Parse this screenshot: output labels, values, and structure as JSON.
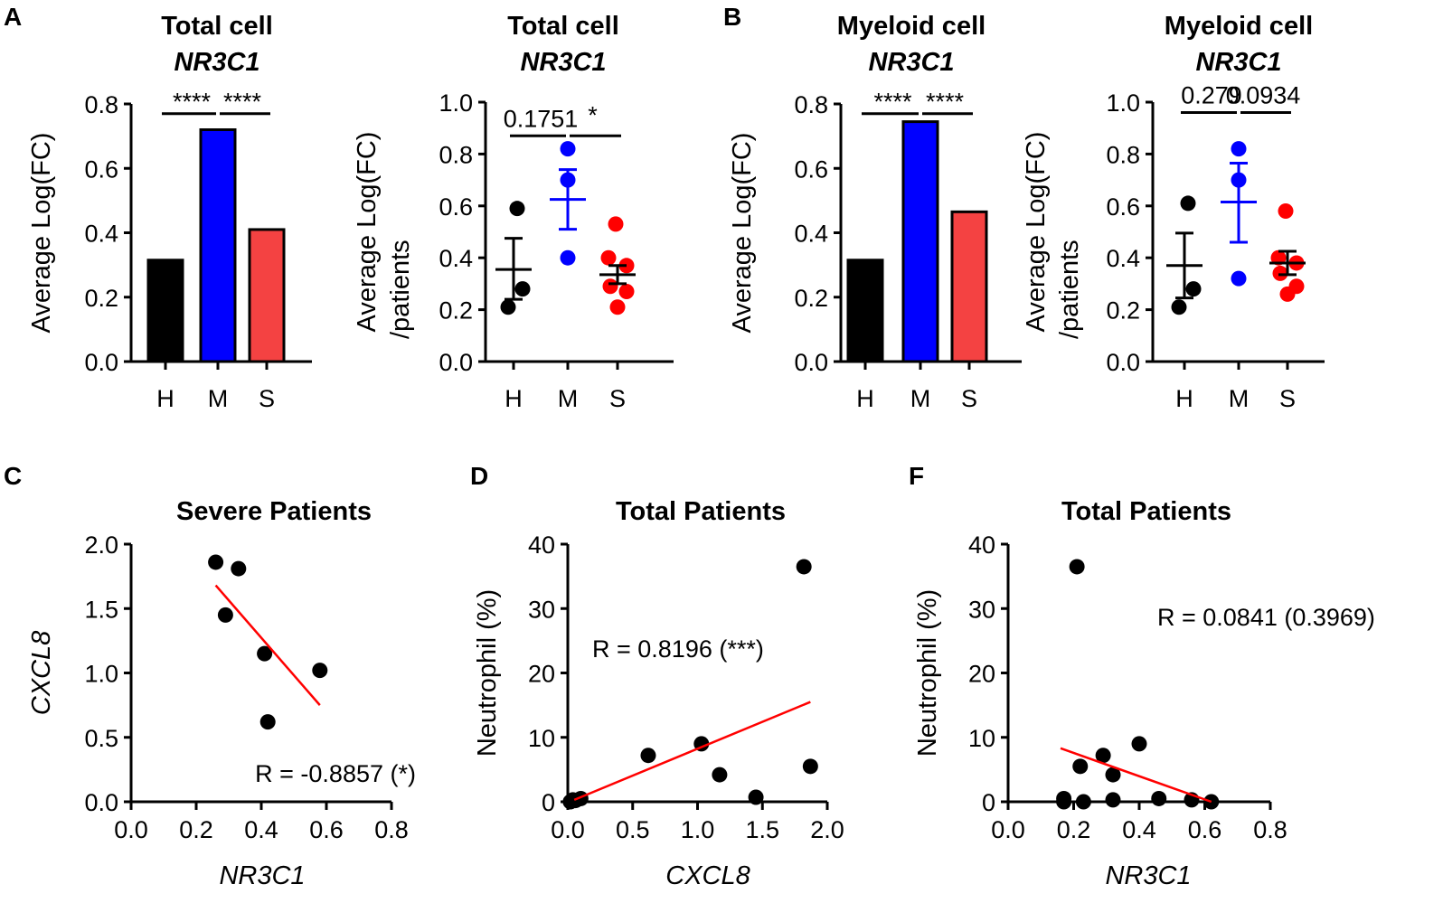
{
  "panel_letters": [
    "A",
    "B",
    "C",
    "D",
    "F"
  ],
  "chart_data": [
    {
      "type": "bar",
      "panel": "A",
      "title": "Total cell",
      "subtitle": "NR3C1",
      "ylabel": "Average Log(FC)",
      "ylim": [
        0,
        0.8
      ],
      "yticks": [
        "0.0",
        "0.2",
        "0.4",
        "0.6",
        "0.8"
      ],
      "categories": [
        "H",
        "M",
        "S"
      ],
      "values": [
        0.315,
        0.72,
        0.41
      ],
      "colors": [
        "#000000",
        "#0000ff",
        "#f44242"
      ],
      "significance": [
        {
          "label": "****",
          "from": "H",
          "to": "M"
        },
        {
          "label": "****",
          "from": "M",
          "to": "S"
        }
      ]
    },
    {
      "type": "scatter",
      "panel": "A",
      "title": "Total cell",
      "subtitle": "NR3C1",
      "ylabel": "Average Log(FC)",
      "ylabel2": "/patients",
      "ylim": [
        0,
        1.0
      ],
      "yticks": [
        "0.0",
        "0.2",
        "0.4",
        "0.6",
        "0.8",
        "1.0"
      ],
      "categories": [
        "H",
        "M",
        "S"
      ],
      "colors": [
        "#000000",
        "#0000ff",
        "#ff0000"
      ],
      "groups": [
        {
          "points": [
            0.59,
            0.28,
            0.21
          ],
          "mean": 0.355,
          "sem": [
            0.24,
            0.475
          ]
        },
        {
          "points": [
            0.82,
            0.7,
            0.4
          ],
          "mean": 0.625,
          "sem": [
            0.51,
            0.74
          ]
        },
        {
          "points": [
            0.53,
            0.4,
            0.37,
            0.29,
            0.27,
            0.21
          ],
          "mean": 0.335,
          "sem": [
            0.3,
            0.37
          ]
        }
      ],
      "significance": [
        {
          "label": "0.1751",
          "from": "H",
          "to": "M"
        },
        {
          "label": "*",
          "from": "M",
          "to": "S"
        }
      ]
    },
    {
      "type": "bar",
      "panel": "B",
      "title": "Myeloid cell",
      "subtitle": "NR3C1",
      "ylabel": "Average Log(FC)",
      "ylim": [
        0,
        0.8
      ],
      "yticks": [
        "0.0",
        "0.2",
        "0.4",
        "0.6",
        "0.8"
      ],
      "categories": [
        "H",
        "M",
        "S"
      ],
      "values": [
        0.315,
        0.745,
        0.465
      ],
      "colors": [
        "#000000",
        "#0000ff",
        "#f44242"
      ],
      "significance": [
        {
          "label": "****",
          "from": "H",
          "to": "M"
        },
        {
          "label": "****",
          "from": "M",
          "to": "S"
        }
      ]
    },
    {
      "type": "scatter",
      "panel": "B",
      "title": "Myeloid cell",
      "subtitle": "NR3C1",
      "ylabel": "Average Log(FC)",
      "ylabel2": "/patients",
      "ylim": [
        0,
        1.0
      ],
      "yticks": [
        "0.0",
        "0.2",
        "0.4",
        "0.6",
        "0.8",
        "1.0"
      ],
      "categories": [
        "H",
        "M",
        "S"
      ],
      "colors": [
        "#000000",
        "#0000ff",
        "#ff0000"
      ],
      "groups": [
        {
          "points": [
            0.61,
            0.28,
            0.21
          ],
          "mean": 0.37,
          "sem": [
            0.245,
            0.495
          ]
        },
        {
          "points": [
            0.82,
            0.7,
            0.32
          ],
          "mean": 0.615,
          "sem": [
            0.46,
            0.765
          ]
        },
        {
          "points": [
            0.58,
            0.4,
            0.38,
            0.34,
            0.29,
            0.26
          ],
          "mean": 0.38,
          "sem": [
            0.335,
            0.425
          ]
        }
      ],
      "significance": [
        {
          "label": "0.279",
          "from": "H",
          "to": "M"
        },
        {
          "label": "0.0934",
          "from": "M",
          "to": "S"
        }
      ]
    },
    {
      "type": "scatter",
      "panel": "C",
      "title": "Severe Patients",
      "xlabel": "NR3C1",
      "ylabel": "CXCL8",
      "xlim": [
        0,
        0.8
      ],
      "ylim": [
        0,
        2.0
      ],
      "xticks": [
        "0.0",
        "0.2",
        "0.4",
        "0.6",
        "0.8"
      ],
      "yticks": [
        "0.0",
        "0.5",
        "1.0",
        "1.5",
        "2.0"
      ],
      "x": [
        0.26,
        0.33,
        0.29,
        0.41,
        0.58,
        0.42
      ],
      "y": [
        1.86,
        1.81,
        1.45,
        1.15,
        1.02,
        0.62
      ],
      "fit": {
        "x": [
          0.26,
          0.58
        ],
        "y": [
          1.68,
          0.75
        ]
      },
      "annotation": "R = -0.8857 (*)",
      "line_color": "#ff0000"
    },
    {
      "type": "scatter",
      "panel": "D",
      "title": "Total Patients",
      "xlabel": "CXCL8",
      "ylabel": "Neutrophil (%)",
      "xlim": [
        0,
        2.0
      ],
      "ylim": [
        0,
        40
      ],
      "xticks": [
        "0.0",
        "0.5",
        "1.0",
        "1.5",
        "2.0"
      ],
      "yticks": [
        "0",
        "10",
        "20",
        "30",
        "40"
      ],
      "x": [
        0.02,
        0.04,
        0.06,
        0.1,
        0.62,
        1.03,
        1.17,
        1.45,
        1.82,
        1.87
      ],
      "y": [
        0.0,
        0.3,
        0.2,
        0.5,
        7.2,
        9.0,
        4.2,
        0.7,
        36.5,
        5.5
      ],
      "fit": {
        "x": [
          0.05,
          1.87
        ],
        "y": [
          0.3,
          15.5
        ]
      },
      "annotation": "R = 0.8196 (***)",
      "line_color": "#ff0000"
    },
    {
      "type": "scatter",
      "panel": "F",
      "title": "Total Patients",
      "xlabel": "NR3C1",
      "ylabel": "Neutrophil (%)",
      "xlim": [
        0,
        0.8
      ],
      "ylim": [
        0,
        40
      ],
      "xticks": [
        "0.0",
        "0.2",
        "0.4",
        "0.6",
        "0.8"
      ],
      "yticks": [
        "0",
        "10",
        "20",
        "30",
        "40"
      ],
      "x": [
        0.17,
        0.17,
        0.21,
        0.22,
        0.23,
        0.29,
        0.32,
        0.32,
        0.4,
        0.46,
        0.56,
        0.62
      ],
      "y": [
        0.5,
        0.0,
        36.5,
        5.5,
        0.0,
        7.2,
        4.2,
        0.3,
        9.0,
        0.5,
        0.3,
        0.0
      ],
      "fit": {
        "x": [
          0.16,
          0.62
        ],
        "y": [
          8.3,
          0.0
        ]
      },
      "annotation": "R = 0.0841 (0.3969)",
      "line_color": "#ff0000"
    }
  ]
}
